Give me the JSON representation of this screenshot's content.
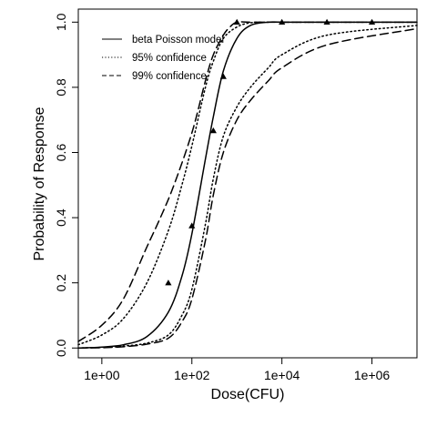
{
  "chart_data": {
    "type": "line",
    "xlabel": "Dose(CFU)",
    "ylabel": "Probability of Response",
    "x_scale": "log10",
    "xlim": [
      0.3,
      10000000
    ],
    "ylim": [
      -0.03,
      1.04
    ],
    "x_ticks": [
      {
        "value": 1,
        "label": "1e+00"
      },
      {
        "value": 100,
        "label": "1e+02"
      },
      {
        "value": 10000,
        "label": "1e+04"
      },
      {
        "value": 1000000,
        "label": "1e+06"
      }
    ],
    "y_ticks": [
      {
        "value": 0.0,
        "label": "0.0"
      },
      {
        "value": 0.2,
        "label": "0.2"
      },
      {
        "value": 0.4,
        "label": "0.4"
      },
      {
        "value": 0.6,
        "label": "0.6"
      },
      {
        "value": 0.8,
        "label": "0.8"
      },
      {
        "value": 1.0,
        "label": "1.0"
      }
    ],
    "grid": false,
    "legend_position": "top-left",
    "series": [
      {
        "name": "beta Poisson model",
        "style": "solid",
        "x": [
          0.3,
          1,
          3,
          10,
          30,
          60,
          100,
          200,
          300,
          500,
          1000,
          2000,
          5000,
          10000,
          100000,
          10000000
        ],
        "y": [
          0.0,
          0.003,
          0.01,
          0.035,
          0.11,
          0.22,
          0.35,
          0.58,
          0.71,
          0.85,
          0.95,
          0.99,
          1.0,
          1.0,
          1.0,
          1.0
        ]
      },
      {
        "name": "95% confidence",
        "style": "dotted",
        "x": [
          0.3,
          1,
          3,
          10,
          30,
          60,
          100,
          200,
          300,
          500,
          1000,
          2000,
          5000,
          10000,
          100000,
          10000000
        ],
        "y": [
          0.01,
          0.04,
          0.09,
          0.2,
          0.36,
          0.5,
          0.62,
          0.8,
          0.88,
          0.95,
          0.985,
          0.998,
          1.0,
          1.0,
          1.0,
          1.0
        ]
      },
      {
        "name": "95% confidence",
        "style": "dotted",
        "x": [
          0.3,
          1,
          3,
          10,
          30,
          60,
          100,
          200,
          300,
          500,
          1000,
          2000,
          5000,
          10000,
          100000,
          10000000
        ],
        "y": [
          0.0,
          0.002,
          0.006,
          0.015,
          0.04,
          0.1,
          0.18,
          0.38,
          0.52,
          0.65,
          0.74,
          0.8,
          0.86,
          0.9,
          0.96,
          0.99
        ]
      },
      {
        "name": "99% confidence",
        "style": "dashed",
        "x": [
          0.3,
          1,
          3,
          10,
          20,
          40,
          100,
          200,
          300,
          500,
          700,
          1000,
          2000,
          10000,
          10000000
        ],
        "y": [
          0.02,
          0.07,
          0.15,
          0.31,
          0.4,
          0.5,
          0.66,
          0.82,
          0.9,
          0.96,
          0.985,
          1.0,
          1.0,
          1.0,
          1.0
        ]
      },
      {
        "name": "99% confidence",
        "style": "dashed",
        "x": [
          0.3,
          1,
          3,
          10,
          30,
          60,
          100,
          200,
          300,
          500,
          1000,
          2000,
          5000,
          10000,
          100000,
          10000000
        ],
        "y": [
          0.0,
          0.001,
          0.004,
          0.012,
          0.03,
          0.08,
          0.15,
          0.33,
          0.47,
          0.6,
          0.7,
          0.76,
          0.82,
          0.86,
          0.93,
          0.98
        ]
      }
    ],
    "observed_points": {
      "marker": "triangle",
      "x": [
        30,
        100,
        300,
        500,
        1000,
        10000,
        100000,
        1000000
      ],
      "y": [
        0.2,
        0.375,
        0.667,
        0.833,
        1.0,
        1.0,
        1.0,
        1.0
      ]
    },
    "legend": [
      {
        "label": "beta Poisson model",
        "style": "solid"
      },
      {
        "label": "95% confidence",
        "style": "dotted"
      },
      {
        "label": "99% confidence",
        "style": "dashed"
      }
    ]
  }
}
